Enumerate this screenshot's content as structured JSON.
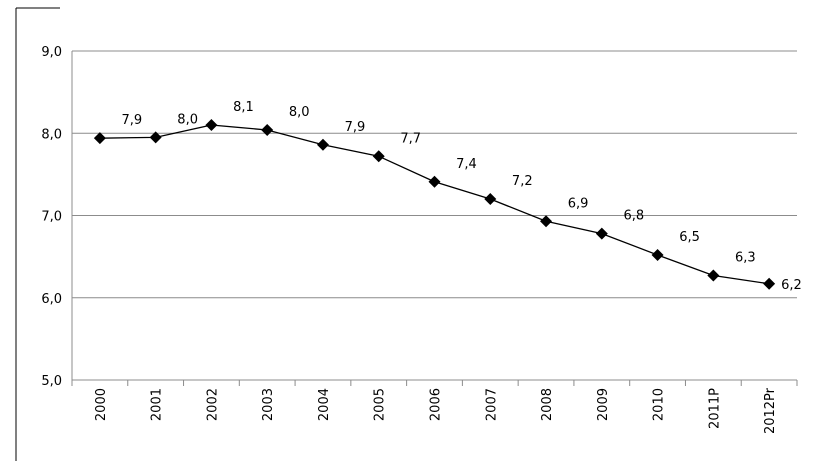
{
  "chart_data": {
    "type": "line",
    "categories": [
      "2000",
      "2001",
      "2002",
      "2003",
      "2004",
      "2005",
      "2006",
      "2007",
      "2008",
      "2009",
      "2010",
      "2011P",
      "2012Pr"
    ],
    "values": [
      7.94,
      7.95,
      8.1,
      8.04,
      7.86,
      7.72,
      7.41,
      7.2,
      6.93,
      6.78,
      6.52,
      6.27,
      6.17
    ],
    "value_labels": [
      "7,9",
      "8,0",
      "8,1",
      "8,0",
      "7,9",
      "7,7",
      "7,4",
      "7,2",
      "6,9",
      "6,8",
      "6,5",
      "6,3",
      "6,2"
    ],
    "color": "#000000",
    "ylim": [
      5,
      9
    ],
    "yticks": [
      {
        "value": 5,
        "label": "5,0"
      },
      {
        "value": 6,
        "label": "6,0"
      },
      {
        "value": 7,
        "label": "7,0"
      },
      {
        "value": 8,
        "label": "8,0"
      },
      {
        "value": 9,
        "label": "9,0"
      }
    ],
    "grid": true
  }
}
